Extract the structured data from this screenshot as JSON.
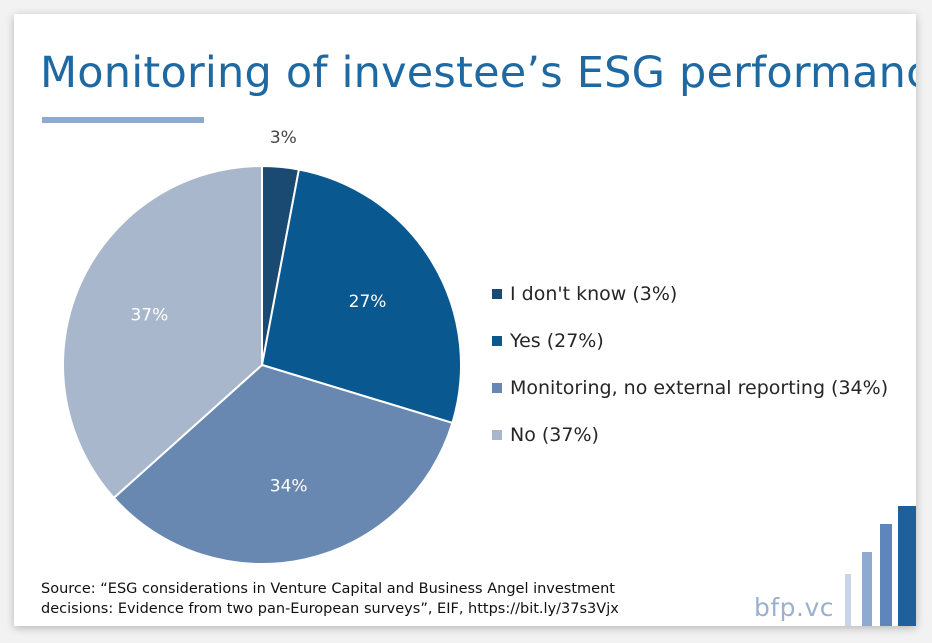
{
  "title": "Monitoring of investee’s ESG performance",
  "chart_data": {
    "type": "pie",
    "categories": [
      "I don't know",
      "Yes",
      "Monitoring, no external reporting",
      "No"
    ],
    "values": [
      3,
      27,
      34,
      37
    ],
    "labels": [
      "3%",
      "27%",
      "34%",
      "37%"
    ],
    "legend": [
      "I don't know (3%)",
      "Yes (27%)",
      "Monitoring, no external reporting (34%)",
      "No (37%)"
    ],
    "colors": [
      "#1a4a72",
      "#0a5890",
      "#6888b2",
      "#a9b7cc"
    ],
    "legend_position": "right"
  },
  "source": {
    "line1": "Source: “ESG considerations in Venture Capital and Business Angel investment",
    "line2": "decisions: Evidence from two pan-European surveys”, EIF, https://bit.ly/37s3Vjx"
  },
  "brand": "bfp.vc"
}
